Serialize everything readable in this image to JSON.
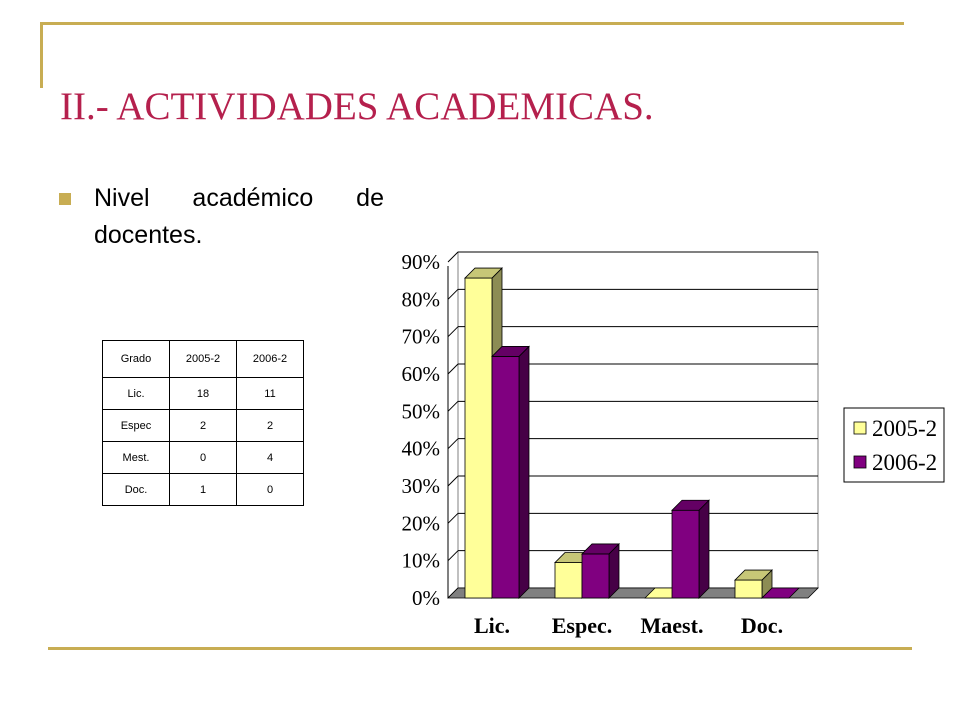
{
  "slide": {
    "title": "II.- ACTIVIDADES ACADEMICAS.",
    "bullet": "Nivel académico de docentes.",
    "accent_color": "#c8ad53",
    "title_color": "#b5204d"
  },
  "table": {
    "headers": [
      "Grado",
      "2005-2",
      "2006-2"
    ],
    "rows": [
      [
        "Lic.",
        "18",
        "11"
      ],
      [
        "Espec",
        "2",
        "2"
      ],
      [
        "Mest.",
        "0",
        "4"
      ],
      [
        "Doc.",
        "1",
        "0"
      ]
    ]
  },
  "chart_data": {
    "type": "bar",
    "categories": [
      "Lic.",
      "Espec.",
      "Maest.",
      "Doc."
    ],
    "series": [
      {
        "name": "2005-2",
        "values": [
          85.7,
          9.5,
          0,
          4.8
        ],
        "color": "#ffff99"
      },
      {
        "name": "2006-2",
        "values": [
          64.7,
          11.8,
          23.5,
          0
        ],
        "color": "#800080"
      }
    ],
    "ylim": [
      0,
      90
    ],
    "yticks": [
      "0%",
      "10%",
      "20%",
      "30%",
      "40%",
      "50%",
      "60%",
      "70%",
      "80%",
      "90%"
    ],
    "grid": true,
    "legend": "right",
    "style": "3d"
  }
}
